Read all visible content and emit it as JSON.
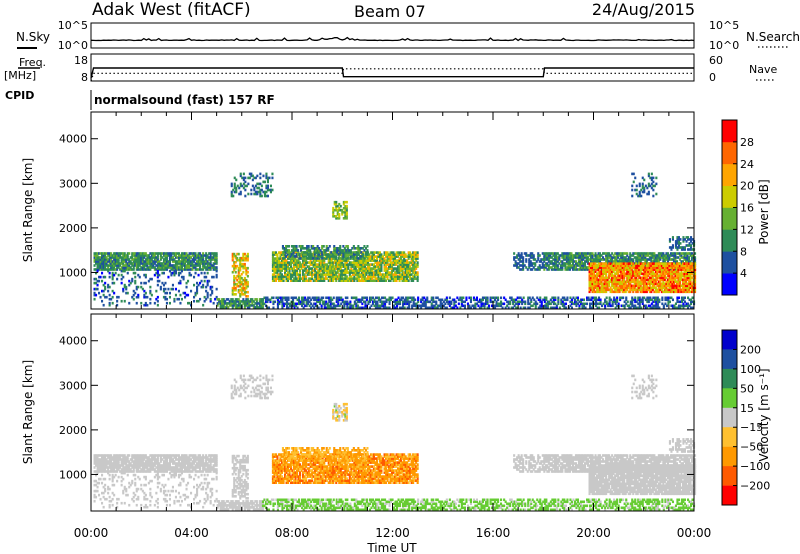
{
  "header": {
    "site": "Adak West (fitACF)",
    "beam": "Beam 07",
    "date": "24/Aug/2015"
  },
  "colors": {
    "power": [
      "#0000ff",
      "#1e50a0",
      "#2e8b57",
      "#66b032",
      "#cccc00",
      "#ffa500",
      "#ff6600",
      "#ff0000"
    ],
    "velocity": [
      "#ff0000",
      "#ff5a00",
      "#ff9900",
      "#ffc030",
      "#c8c8c8",
      "#66cc33",
      "#2e8b57",
      "#1e50a0",
      "#0000cc"
    ],
    "ground": "#b4b4b4"
  },
  "chart_data": [
    {
      "type": "line",
      "panel": "noise",
      "left_label": "N.Sky",
      "right_label": "N.Search",
      "left_ticks": [
        "10^5",
        "10^0"
      ],
      "right_ticks": [
        "10^5",
        "10^0"
      ]
    },
    {
      "type": "line",
      "panel": "frequency",
      "left_label_1": "Freq.",
      "left_label_2": "[MHz]",
      "right_label": "Nave",
      "left_ticks": [
        "18",
        "8"
      ],
      "right_ticks": [
        "60",
        "0"
      ],
      "freq_series": {
        "x": [
          0.0,
          0.1,
          10.0,
          10.05,
          18.0,
          18.05,
          24.0
        ],
        "y": [
          9,
          12.8,
          12.8,
          9.6,
          9.6,
          12.8,
          12.8
        ]
      },
      "nave_series": {
        "x": [
          0.0,
          0.1,
          10.0,
          10.05,
          18.0,
          18.05,
          24.0
        ],
        "y": [
          0,
          17,
          17,
          27,
          27,
          17,
          17
        ]
      }
    },
    {
      "type": "heatmap",
      "panel": "power",
      "cpid_label": "CPID",
      "cpid_text": "normalsound (fast) 157 RF",
      "ylabel": "Slant Range [km]",
      "yticks": [
        "1000",
        "2000",
        "3000",
        "4000"
      ],
      "ylim": [
        180,
        4600
      ],
      "xlim": [
        0,
        24
      ],
      "colorbar_label": "Power [dB]",
      "colorbar_ticks": [
        "4",
        "8",
        "12",
        "16",
        "20",
        "24",
        "28"
      ],
      "colorbar_range": [
        0,
        32
      ]
    },
    {
      "type": "heatmap",
      "panel": "velocity",
      "ylabel": "Slant Range [km]",
      "yticks": [
        "1000",
        "2000",
        "3000",
        "4000"
      ],
      "ylim": [
        180,
        4600
      ],
      "xlim": [
        0,
        24
      ],
      "xlabel": "Time UT",
      "xticks": [
        "00:00",
        "04:00",
        "08:00",
        "12:00",
        "16:00",
        "20:00",
        "00:00"
      ],
      "colorbar_label": "Velocity [m s⁻¹]",
      "colorbar_ticks": [
        "200",
        "100",
        "50",
        "15",
        "−15",
        "−50",
        "−100",
        "−200"
      ]
    }
  ],
  "echo_regions": [
    {
      "t0": 0.1,
      "t1": 5.0,
      "r0": 1050,
      "r1": 1450,
      "density": 0.85,
      "power": [
        6,
        14
      ],
      "vel": [
        -15,
        15
      ]
    },
    {
      "t0": 0.1,
      "t1": 5.0,
      "r0": 250,
      "r1": 1050,
      "density": 0.18,
      "power": [
        3,
        10
      ],
      "vel": [
        -15,
        15
      ]
    },
    {
      "t0": 5.6,
      "t1": 6.2,
      "r0": 450,
      "r1": 1400,
      "density": 0.55,
      "power": [
        12,
        26
      ],
      "vel": [
        -15,
        15
      ]
    },
    {
      "t0": 5.0,
      "t1": 6.8,
      "r0": 200,
      "r1": 400,
      "density": 0.8,
      "power": [
        6,
        14
      ],
      "vel": [
        -15,
        15
      ]
    },
    {
      "t0": 7.2,
      "t1": 13.0,
      "r0": 800,
      "r1": 1450,
      "density": 0.85,
      "power": [
        8,
        22
      ],
      "vel": [
        -120,
        -30
      ]
    },
    {
      "t0": 7.6,
      "t1": 11.0,
      "r0": 1300,
      "r1": 1600,
      "density": 0.6,
      "power": [
        6,
        14
      ],
      "vel": [
        -80,
        -20
      ]
    },
    {
      "t0": 5.5,
      "t1": 7.2,
      "r0": 2700,
      "r1": 3200,
      "density": 0.3,
      "power": [
        5,
        12
      ],
      "vel": [
        -15,
        15
      ]
    },
    {
      "t0": 9.6,
      "t1": 10.2,
      "r0": 2200,
      "r1": 2600,
      "density": 0.6,
      "power": [
        10,
        20
      ],
      "vel": [
        -40,
        20
      ]
    },
    {
      "t0": 6.8,
      "t1": 24.0,
      "r0": 190,
      "r1": 420,
      "density": 0.55,
      "power": [
        3,
        10
      ],
      "vel": [
        10,
        40
      ]
    },
    {
      "t0": 16.8,
      "t1": 18.0,
      "r0": 1050,
      "r1": 1450,
      "density": 0.5,
      "power": [
        4,
        10
      ],
      "vel": [
        -15,
        15
      ]
    },
    {
      "t0": 18.0,
      "t1": 24.0,
      "r0": 1050,
      "r1": 1450,
      "density": 0.8,
      "power": [
        6,
        14
      ],
      "vel": [
        -15,
        15
      ]
    },
    {
      "t0": 19.8,
      "t1": 24.0,
      "r0": 550,
      "r1": 1200,
      "density": 0.9,
      "power": [
        16,
        30
      ],
      "vel": [
        -15,
        15
      ]
    },
    {
      "t0": 23.0,
      "t1": 24.0,
      "r0": 1500,
      "r1": 1800,
      "density": 0.5,
      "power": [
        4,
        10
      ],
      "vel": [
        -15,
        15
      ]
    },
    {
      "t0": 21.5,
      "t1": 22.5,
      "r0": 2700,
      "r1": 3200,
      "density": 0.3,
      "power": [
        4,
        10
      ],
      "vel": [
        -15,
        15
      ]
    }
  ]
}
